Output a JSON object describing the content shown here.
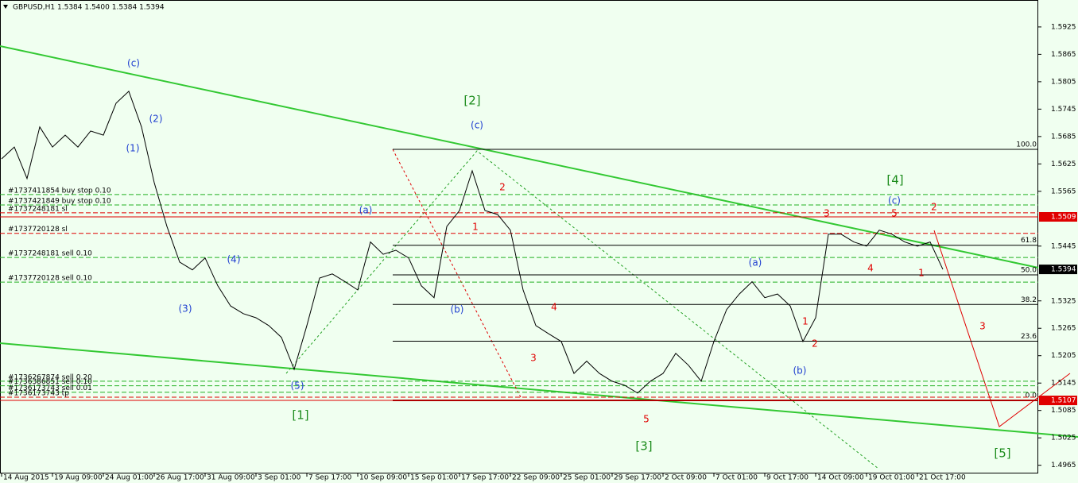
{
  "chart_data": {
    "type": "line",
    "title": "GBPUSD,H1  1.5384 1.5400 1.5384 1.5394",
    "categories": [
      "14 Aug 2015",
      null,
      null,
      null,
      "19 Aug 09:00",
      null,
      null,
      null,
      "24 Aug 01:00",
      null,
      null,
      null,
      "26 Aug 17:00",
      null,
      null,
      null,
      "31 Aug 09:00",
      null,
      null,
      null,
      "3 Sep 01:00",
      null,
      null,
      null,
      "7 Sep 17:00",
      null,
      null,
      null,
      "10 Sep 09:00",
      null,
      null,
      null,
      "15 Sep 01:00",
      null,
      null,
      null,
      "17 Sep 17:00",
      null,
      null,
      null,
      "22 Sep 09:00",
      null,
      null,
      null,
      "25 Sep 01:00",
      null,
      null,
      null,
      "29 Sep 17:00",
      null,
      null,
      null,
      "2 Oct 09:00",
      null,
      null,
      null,
      "7 Oct 01:00",
      null,
      null,
      null,
      "9 Oct 17:00",
      null,
      null,
      null,
      "14 Oct 09:00",
      null,
      null,
      null,
      "19 Oct 01:00",
      null,
      null,
      null,
      "21 Oct 17:00",
      null,
      null,
      null,
      null,
      null,
      null,
      null,
      null,
      null
    ],
    "series": [
      {
        "color": "#000000",
        "values": [
          1.5636,
          1.5662,
          1.5593,
          1.5706,
          1.5662,
          1.5688,
          1.5662,
          1.5697,
          1.5688,
          1.5758,
          1.5784,
          1.5706,
          1.5584,
          1.5488,
          1.541,
          1.5393,
          1.5419,
          1.5358,
          1.5314,
          1.5297,
          1.5288,
          1.5271,
          1.5245,
          1.5175,
          1.5271,
          1.5375,
          1.5384,
          1.5367,
          1.5349,
          1.5454,
          1.5427,
          1.5436,
          1.5419,
          1.5358,
          1.5332,
          1.5488,
          1.5523,
          1.561,
          1.5523,
          1.5514,
          1.548,
          1.5349,
          1.5271,
          1.5253,
          1.5236,
          1.5166,
          1.5193,
          1.5166,
          1.5149,
          1.514,
          1.5123,
          1.5149,
          1.5166,
          1.521,
          1.5184,
          1.5149,
          1.5236,
          1.5306,
          1.534,
          1.5367,
          1.5332,
          1.534,
          1.5314,
          1.5236,
          1.5288,
          1.5471,
          1.5471,
          1.5454,
          1.5445,
          1.548,
          1.5471,
          1.5454,
          1.5445,
          1.5454,
          1.5394,
          null,
          null,
          null,
          null,
          null,
          null,
          null
        ]
      }
    ],
    "ylim": [
      1.4947,
      1.5984
    ],
    "yticks": [
      1.4965,
      1.5025,
      1.5085,
      1.5145,
      1.5205,
      1.5265,
      1.5325,
      1.5445,
      1.5565,
      1.5625,
      1.5685,
      1.5745,
      1.5805,
      1.5865,
      1.5925
    ],
    "price_levels": [
      {
        "value": 1.5509,
        "color": "#e00000"
      },
      {
        "value": 1.5394,
        "color": "#000000"
      },
      {
        "value": 1.5107,
        "color": "#e00000"
      }
    ],
    "orders": [
      {
        "label": "#1737411854 buy stop 0.10",
        "price": 1.5558,
        "color": "#22b022"
      },
      {
        "label": "#1737421849 buy stop 0.10",
        "price": 1.5535,
        "color": "#22b022"
      },
      {
        "label": "#1737248181 sl",
        "price": 1.5518,
        "color": "#e00000"
      },
      {
        "label": "#1737720128 sl",
        "price": 1.5473,
        "color": "#e00000"
      },
      {
        "label": "#1737248181 sell 0.10",
        "price": 1.542,
        "color": "#22b022"
      },
      {
        "label": "#1737720128 sell 0.10",
        "price": 1.5366,
        "color": "#22b022"
      },
      {
        "label": "#1736267874 sell 0.20",
        "price": 1.5149,
        "color": "#22b022"
      },
      {
        "label": "#1736386851 sell 0.10",
        "price": 1.5139,
        "color": "#22b022"
      },
      {
        "label": "#1736173743 sell 0.01",
        "price": 1.5125,
        "color": "#22b022"
      },
      {
        "label": "#1736173743 tp",
        "price": 1.5114,
        "color": "#e00000"
      }
    ],
    "fibonacci": {
      "high": 1.5657,
      "low": 1.5107,
      "levels": [
        {
          "value": 100,
          "label": "100.0"
        },
        61.8,
        {
          "value": 50,
          "label": "50.0"
        },
        38.2,
        23.6,
        {
          "value": 0,
          "label": "0.0"
        }
      ]
    },
    "annotations": [
      {
        "text": "(c)",
        "color": "#1f3fd0"
      },
      {
        "text": "(2)",
        "color": "#1f3fd0"
      },
      {
        "text": "(1)",
        "color": "#1f3fd0"
      },
      {
        "text": "(3)",
        "color": "#1f3fd0"
      },
      {
        "text": "(4)",
        "color": "#1f3fd0"
      },
      {
        "text": "(5)",
        "color": "#1f3fd0"
      },
      {
        "text": "(a)",
        "color": "#1f3fd0"
      },
      {
        "text": "(b)",
        "color": "#1f3fd0"
      },
      {
        "text": "(c)",
        "color": "#1f3fd0"
      },
      {
        "text": "(a)",
        "color": "#1f3fd0"
      },
      {
        "text": "(b)",
        "color": "#1f3fd0"
      },
      {
        "text": "(c)",
        "color": "#1f3fd0"
      },
      {
        "text": "[1]",
        "color": "#1c8c1c"
      },
      {
        "text": "[2]",
        "color": "#1c8c1c"
      },
      {
        "text": "[3]",
        "color": "#1c8c1c"
      },
      {
        "text": "[4]",
        "color": "#1c8c1c"
      },
      {
        "text": "[5]",
        "color": "#1c8c1c"
      },
      {
        "text": "1",
        "color": "#e00000"
      },
      {
        "text": "2",
        "color": "#e00000"
      },
      {
        "text": "4",
        "color": "#e00000"
      },
      {
        "text": "3",
        "color": "#e00000"
      },
      {
        "text": "5",
        "color": "#e00000"
      },
      {
        "text": "1",
        "color": "#e00000"
      },
      {
        "text": "2",
        "color": "#e00000"
      },
      {
        "text": "3",
        "color": "#e00000"
      },
      {
        "text": "4",
        "color": "#e00000"
      },
      {
        "text": "5",
        "color": "#e00000"
      },
      {
        "text": "2",
        "color": "#e00000"
      },
      {
        "text": "1",
        "color": "#e00000"
      },
      {
        "text": "3",
        "color": "#e00000"
      }
    ]
  }
}
